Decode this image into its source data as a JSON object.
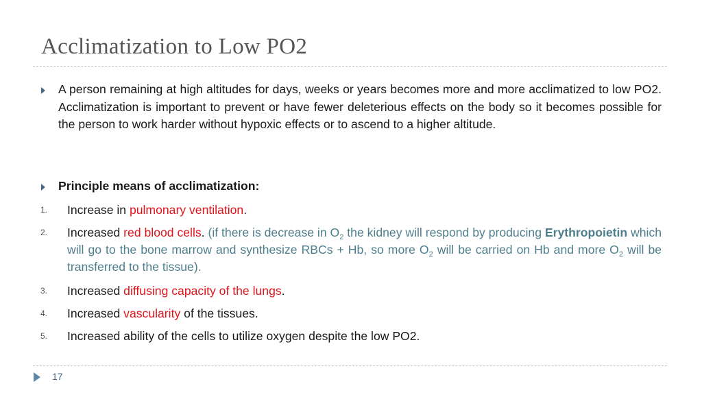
{
  "title": "Acclimatization to Low PO2",
  "intro": {
    "text": "A person remaining at high altitudes for days,  weeks or years becomes more and more acclimatized to low PO2. Acclimatization is important to prevent or have fewer deleterious effects on the body so it becomes possible for the person to work harder without hypoxic effects or to ascend to a higher altitude."
  },
  "heading": "Principle means of acclimatization:",
  "items": [
    {
      "num": "1.",
      "pre": "Increase in ",
      "highlight": "pulmonary ventilation",
      "post": "."
    },
    {
      "num": "2.",
      "pre": "Increased ",
      "highlight": "red blood cells",
      "post": ".",
      "note_a": " (if there is decrease in O",
      "sub1": "2",
      "note_b": " the kidney will respond by producing ",
      "note_bold": "Erythropoietin",
      "note_c": " which will go to the bone marrow and synthesize RBCs + Hb, so more O",
      "sub2": "2",
      "note_d": " will be carried on Hb and more O",
      "sub3": "2",
      "note_e": " will be transferred to the tissue)."
    },
    {
      "num": "3.",
      "pre": "Increased ",
      "highlight": "diffusing capacity of the lungs",
      "post": "."
    },
    {
      "num": "4.",
      "pre": "Increased ",
      "highlight": "vascularity",
      "post": " of the tissues."
    },
    {
      "num": "5.",
      "text": "Increased ability of the cells to utilize oxygen despite the low PO2."
    }
  ],
  "page_number": "17",
  "colors": {
    "highlight": "#e0131b",
    "note": "#4e7e8c",
    "title": "#555555",
    "bullet": "#4a6a8a"
  }
}
